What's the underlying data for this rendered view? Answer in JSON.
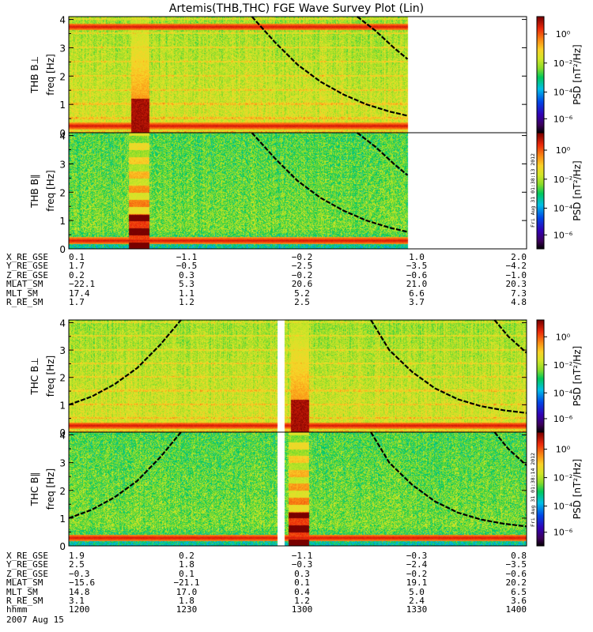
{
  "chart_title": "Artemis(THB,THC) FGE Wave Survey Plot (Lin)",
  "colorbar": {
    "label": "PSD [nT²/Hz]",
    "ticks": [
      "10⁰",
      "10⁻²",
      "10⁻⁴",
      "10⁻⁶"
    ],
    "stamp_top": "Fri Aug 31 01:38:13 2012",
    "stamp_bottom": "Fri Aug 31 01:38:14 2012"
  },
  "chart_data": [
    {
      "type": "heatmap",
      "panel": "THB B⊥",
      "ylabel": "freq [Hz]",
      "yticks": [
        "0",
        "1",
        "2",
        "3",
        "4"
      ],
      "ylim": [
        0,
        4.1
      ],
      "data_coverage": [
        0,
        0.74
      ],
      "burst_interval": [
        0.135,
        0.175
      ],
      "enhanced_lines_hz": [
        0.25,
        3.75
      ],
      "dashed_curves": [
        {
          "x": [
            0.4,
            0.45,
            0.5,
            0.55,
            0.6,
            0.65,
            0.7,
            0.74
          ],
          "y": [
            4.1,
            3.2,
            2.4,
            1.8,
            1.35,
            1.0,
            0.75,
            0.6
          ]
        },
        {
          "x": [
            0.63,
            0.67,
            0.71,
            0.74
          ],
          "y": [
            4.1,
            3.6,
            3.0,
            2.6
          ]
        }
      ]
    },
    {
      "type": "heatmap",
      "panel": "THB B∥",
      "ylabel": "freq [Hz]",
      "yticks": [
        "0",
        "1",
        "2",
        "3",
        "4"
      ],
      "ylim": [
        0,
        4.1
      ],
      "data_coverage": [
        0,
        0.74
      ],
      "burst_interval": [
        0.13,
        0.175
      ],
      "enhanced_lines_hz": [
        0.3
      ],
      "dashed_curves": [
        {
          "x": [
            0.4,
            0.45,
            0.5,
            0.55,
            0.6,
            0.65,
            0.7,
            0.74
          ],
          "y": [
            4.1,
            3.2,
            2.4,
            1.8,
            1.35,
            1.0,
            0.75,
            0.6
          ]
        },
        {
          "x": [
            0.63,
            0.67,
            0.71,
            0.74
          ],
          "y": [
            4.1,
            3.6,
            3.0,
            2.6
          ]
        }
      ]
    },
    {
      "type": "heatmap",
      "panel": "THC B⊥",
      "ylabel": "freq [Hz]",
      "yticks": [
        "0",
        "1",
        "2",
        "3",
        "4"
      ],
      "ylim": [
        0,
        4.1
      ],
      "data_gap": [
        0.455,
        0.47
      ],
      "burst_interval": [
        0.485,
        0.525
      ],
      "enhanced_lines_hz": [
        0.25
      ],
      "dashed_curves": [
        {
          "x": [
            0.0,
            0.05,
            0.1,
            0.15,
            0.2,
            0.245
          ],
          "y": [
            1.0,
            1.3,
            1.75,
            2.35,
            3.2,
            4.1
          ]
        },
        {
          "x": [
            0.66,
            0.7,
            0.75,
            0.8,
            0.85,
            0.9,
            0.95,
            1.0
          ],
          "y": [
            4.1,
            3.0,
            2.2,
            1.6,
            1.2,
            0.95,
            0.8,
            0.7
          ]
        },
        {
          "x": [
            0.93,
            0.96,
            1.0
          ],
          "y": [
            4.1,
            3.5,
            2.9
          ]
        }
      ]
    },
    {
      "type": "heatmap",
      "panel": "THC B∥",
      "ylabel": "freq [Hz]",
      "yticks": [
        "0",
        "1",
        "2",
        "3",
        "4"
      ],
      "ylim": [
        0,
        4.1
      ],
      "data_gap": [
        0.455,
        0.47
      ],
      "burst_interval": [
        0.48,
        0.525
      ],
      "enhanced_lines_hz": [
        0.3
      ],
      "dashed_curves": [
        {
          "x": [
            0.0,
            0.05,
            0.1,
            0.15,
            0.2,
            0.245
          ],
          "y": [
            1.0,
            1.3,
            1.75,
            2.35,
            3.2,
            4.1
          ]
        },
        {
          "x": [
            0.66,
            0.7,
            0.75,
            0.8,
            0.85,
            0.9,
            0.95,
            1.0
          ],
          "y": [
            4.1,
            3.0,
            2.2,
            1.6,
            1.2,
            0.95,
            0.8,
            0.7
          ]
        },
        {
          "x": [
            0.93,
            0.96,
            1.0
          ],
          "y": [
            4.1,
            3.5,
            2.9
          ]
        }
      ]
    }
  ],
  "ephem_thb": [
    {
      "label": "X_RE_GSE",
      "values": [
        "0.1",
        "−1.1",
        "−0.2",
        "1.0",
        "2.0"
      ]
    },
    {
      "label": "Y_RE_GSE",
      "values": [
        "1.7",
        "−0.5",
        "−2.5",
        "−3.5",
        "−4.2"
      ]
    },
    {
      "label": "Z_RE_GSE",
      "values": [
        "0.2",
        "0.3",
        "−0.2",
        "−0.6",
        "−1.0"
      ]
    },
    {
      "label": "MLAT_SM",
      "values": [
        "−22.1",
        "5.3",
        "20.6",
        "21.0",
        "20.3"
      ]
    },
    {
      "label": "MLT_SM",
      "values": [
        "17.4",
        "1.1",
        "5.2",
        "6.6",
        "7.3"
      ]
    },
    {
      "label": "R_RE_SM",
      "values": [
        "1.7",
        "1.2",
        "2.5",
        "3.7",
        "4.8"
      ]
    }
  ],
  "ephem_thc": [
    {
      "label": "X_RE_GSE",
      "values": [
        "1.9",
        "0.2",
        "−1.1",
        "−0.3",
        "0.8"
      ]
    },
    {
      "label": "Y_RE_GSE",
      "values": [
        "2.5",
        "1.8",
        "−0.3",
        "−2.4",
        "−3.5"
      ]
    },
    {
      "label": "Z_RE_GSE",
      "values": [
        "−0.3",
        "0.1",
        "0.3",
        "−0.2",
        "−0.6"
      ]
    },
    {
      "label": "MLAT_SM",
      "values": [
        "−15.6",
        "−21.1",
        "0.1",
        "19.1",
        "20.2"
      ]
    },
    {
      "label": "MLT_SM",
      "values": [
        "14.8",
        "17.0",
        "0.4",
        "5.0",
        "6.5"
      ]
    },
    {
      "label": "R_RE_SM",
      "values": [
        "3.1",
        "1.8",
        "1.2",
        "2.4",
        "3.6"
      ]
    },
    {
      "label": "hhmm",
      "values": [
        "1200",
        "1230",
        "1300",
        "1330",
        "1400"
      ]
    }
  ],
  "date_label": "2007 Aug 15",
  "colors": {
    "axis": "#000000",
    "curve": "#000000",
    "background": "#ffffff"
  }
}
